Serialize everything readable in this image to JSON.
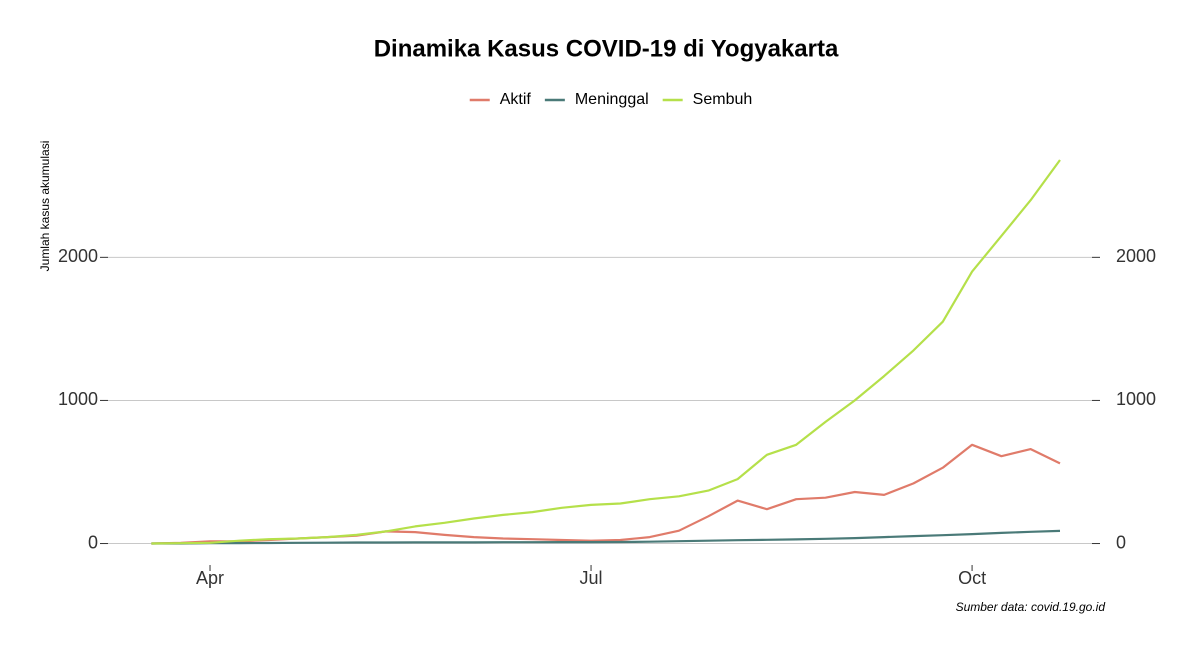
{
  "chart_data": {
    "type": "line",
    "title": "Dinamika Kasus COVID-19 di Yogyakarta",
    "y_label": "Jumlah kasus akumulasi",
    "source": "Sumber data: covid.19.go.id",
    "categories": [
      null,
      null,
      "Apr",
      null,
      null,
      null,
      null,
      null,
      null,
      null,
      null,
      null,
      null,
      null,
      null,
      "Jul",
      null,
      null,
      null,
      null,
      null,
      null,
      null,
      null,
      null,
      null,
      null,
      null,
      "Oct",
      null,
      null,
      null
    ],
    "series": [
      {
        "name": "Aktif",
        "color": "#e07b6a",
        "values": [
          0,
          5,
          15,
          15,
          25,
          35,
          45,
          55,
          85,
          80,
          60,
          45,
          35,
          30,
          25,
          20,
          25,
          45,
          90,
          190,
          300,
          240,
          310,
          320,
          360,
          340,
          420,
          530,
          690,
          610,
          660,
          560
        ]
      },
      {
        "name": "Meninggal",
        "color": "#4a7a78",
        "values": [
          0,
          0,
          2,
          3,
          4,
          5,
          6,
          7,
          7,
          8,
          8,
          8,
          9,
          9,
          10,
          10,
          11,
          13,
          16,
          20,
          23,
          26,
          29,
          33,
          38,
          45,
          52,
          58,
          66,
          74,
          82,
          88
        ]
      },
      {
        "name": "Sembuh",
        "color": "#b5e04a",
        "values": [
          0,
          2,
          5,
          20,
          30,
          35,
          45,
          60,
          85,
          120,
          145,
          175,
          200,
          220,
          250,
          270,
          280,
          310,
          330,
          370,
          450,
          620,
          690,
          850,
          1000,
          1170,
          1350,
          1550,
          1900,
          2150,
          2400,
          2680
        ]
      }
    ],
    "ylim": [
      -150,
      2820
    ],
    "yticks": [
      0,
      1000,
      2000
    ],
    "y2lim": [
      -150,
      2820
    ],
    "y2ticks": [
      0,
      1000,
      2000
    ],
    "grid": true,
    "legend": "top"
  }
}
